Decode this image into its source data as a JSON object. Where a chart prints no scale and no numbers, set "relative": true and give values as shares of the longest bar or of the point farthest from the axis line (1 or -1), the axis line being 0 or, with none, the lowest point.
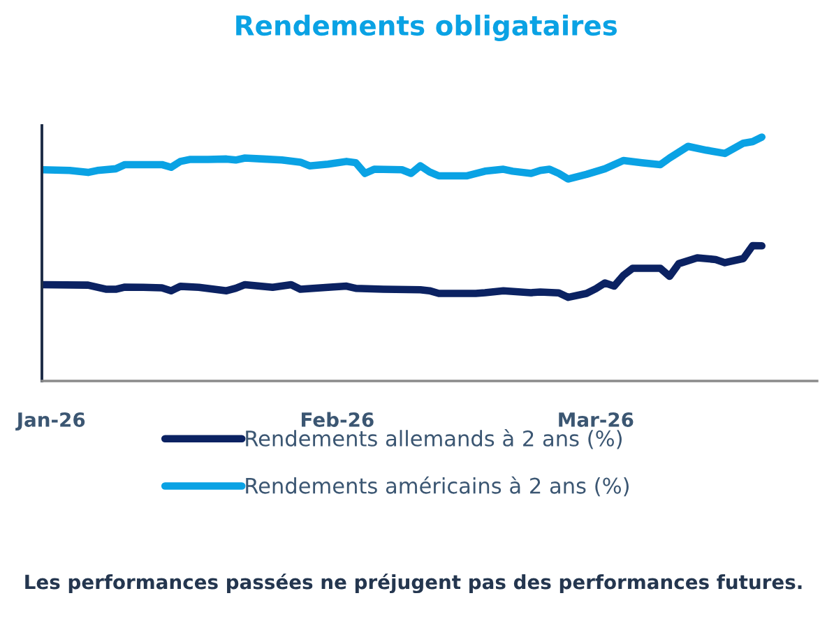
{
  "chart_data": {
    "type": "line",
    "title": "Rendements obligataires",
    "relative": true,
    "legend": "bottom",
    "xlim": [
      "2025-12-31",
      "2026-03-25"
    ],
    "xticks": [
      {
        "value": "2026-01-01",
        "label": "Jan-26"
      },
      {
        "value": "2026-02-01",
        "label": "Feb-26"
      },
      {
        "value": "2026-03-01",
        "label": "Mar-26"
      }
    ],
    "series": [
      {
        "name": "Rendements allemands à 2 ans (%)",
        "color": "#0b2262",
        "x": [
          "2025-12-31",
          "2026-01-05",
          "2026-01-07",
          "2026-01-08",
          "2026-01-09",
          "2026-01-11",
          "2026-01-13",
          "2026-01-14",
          "2026-01-15",
          "2026-01-17",
          "2026-01-20",
          "2026-01-21",
          "2026-01-22",
          "2026-01-25",
          "2026-01-27",
          "2026-01-28",
          "2026-01-31",
          "2026-02-02",
          "2026-02-03",
          "2026-02-06",
          "2026-02-10",
          "2026-02-11",
          "2026-02-12",
          "2026-02-16",
          "2026-02-17",
          "2026-02-19",
          "2026-02-22",
          "2026-02-23",
          "2026-02-25",
          "2026-02-26",
          "2026-02-28",
          "2026-03-01",
          "2026-03-02",
          "2026-03-03",
          "2026-03-04",
          "2026-03-05",
          "2026-03-08",
          "2026-03-09",
          "2026-03-10",
          "2026-03-12",
          "2026-03-14",
          "2026-03-15",
          "2026-03-17",
          "2026-03-18",
          "2026-03-19"
        ],
        "values": [
          0.395,
          0.393,
          0.376,
          0.376,
          0.385,
          0.384,
          0.382,
          0.37,
          0.388,
          0.384,
          0.37,
          0.38,
          0.395,
          0.384,
          0.395,
          0.376,
          0.384,
          0.389,
          0.38,
          0.376,
          0.374,
          0.37,
          0.359,
          0.359,
          0.362,
          0.37,
          0.362,
          0.365,
          0.361,
          0.343,
          0.359,
          0.378,
          0.402,
          0.389,
          0.433,
          0.462,
          0.462,
          0.429,
          0.481,
          0.505,
          0.498,
          0.485,
          0.502,
          0.555,
          0.554
        ]
      },
      {
        "name": "Rendements américains à 2 ans (%)",
        "color": "#0aa2e4",
        "x": [
          "2025-12-31",
          "2026-01-03",
          "2026-01-05",
          "2026-01-06",
          "2026-01-08",
          "2026-01-09",
          "2026-01-11",
          "2026-01-13",
          "2026-01-14",
          "2026-01-15",
          "2026-01-16",
          "2026-01-18",
          "2026-01-20",
          "2026-01-21",
          "2026-01-22",
          "2026-01-24",
          "2026-01-26",
          "2026-01-28",
          "2026-01-29",
          "2026-01-31",
          "2026-02-02",
          "2026-02-03",
          "2026-02-04",
          "2026-02-05",
          "2026-02-08",
          "2026-02-09",
          "2026-02-10",
          "2026-02-11",
          "2026-02-12",
          "2026-02-15",
          "2026-02-17",
          "2026-02-19",
          "2026-02-20",
          "2026-02-22",
          "2026-02-23",
          "2026-02-24",
          "2026-02-25",
          "2026-02-26",
          "2026-02-28",
          "2026-03-02",
          "2026-03-04",
          "2026-03-06",
          "2026-03-08",
          "2026-03-09",
          "2026-03-11",
          "2026-03-13",
          "2026-03-15",
          "2026-03-17",
          "2026-03-18",
          "2026-03-19"
        ],
        "values": [
          0.866,
          0.863,
          0.855,
          0.863,
          0.87,
          0.887,
          0.887,
          0.887,
          0.876,
          0.9,
          0.908,
          0.908,
          0.91,
          0.906,
          0.914,
          0.91,
          0.906,
          0.897,
          0.882,
          0.889,
          0.9,
          0.895,
          0.851,
          0.868,
          0.866,
          0.851,
          0.882,
          0.857,
          0.841,
          0.841,
          0.86,
          0.868,
          0.86,
          0.851,
          0.863,
          0.868,
          0.851,
          0.828,
          0.847,
          0.87,
          0.904,
          0.895,
          0.887,
          0.914,
          0.962,
          0.946,
          0.933,
          0.975,
          0.981,
          1.0
        ]
      }
    ],
    "annotations": [
      "Les performances passées ne préjugent pas des performances futures."
    ]
  }
}
